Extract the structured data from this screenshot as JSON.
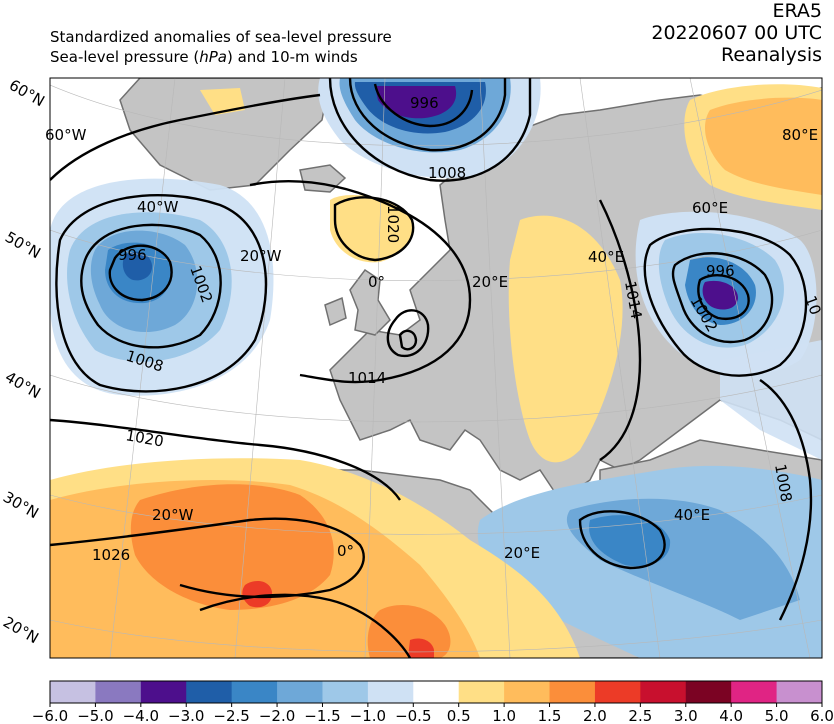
{
  "header": {
    "line1": "Standardized anomalies of sea-level pressure",
    "line2_a": "Sea-level pressure (",
    "line2_unit": "hPa",
    "line2_b": ") and 10-m winds",
    "source": "ERA5",
    "datetime": "20220607 00 UTC",
    "product": "Reanalysis"
  },
  "lat_labels": [
    "60°N",
    "50°N",
    "40°N",
    "30°N",
    "20°N"
  ],
  "lon_labels": [
    "60°W",
    "40°W",
    "20°W",
    "0°",
    "20°E",
    "40°E",
    "60°E",
    "80°E",
    "20°W",
    "0°",
    "20°E",
    "40°E"
  ],
  "isobar_labels": [
    "996",
    "1008",
    "996",
    "1002",
    "1008",
    "1020",
    "1014",
    "1014",
    "996",
    "1002",
    "1020",
    "1026",
    "1008",
    "10"
  ],
  "colorbar": {
    "ticks": [
      "−6.0",
      "−5.0",
      "−4.0",
      "−3.0",
      "−2.5",
      "−2.0",
      "−1.5",
      "−1.0",
      "−0.5",
      "0.5",
      "1.0",
      "1.5",
      "2.0",
      "2.5",
      "3.0",
      "4.0",
      "5.0",
      "6.0"
    ],
    "colors": [
      "#c6c1e2",
      "#8a79c0",
      "#4d0f8c",
      "#1f5ea8",
      "#3a86c6",
      "#6ea8d8",
      "#9ec8e8",
      "#cfe1f4",
      "#ffffff",
      "#ffdf86",
      "#ffbc5c",
      "#fb8e3a",
      "#ec3b27",
      "#c8102e",
      "#7b0323",
      "#e02484",
      "#c890cf"
    ]
  },
  "colors": {
    "land": "#c4c4c4",
    "coast": "#707070",
    "isobar": "#000000"
  }
}
